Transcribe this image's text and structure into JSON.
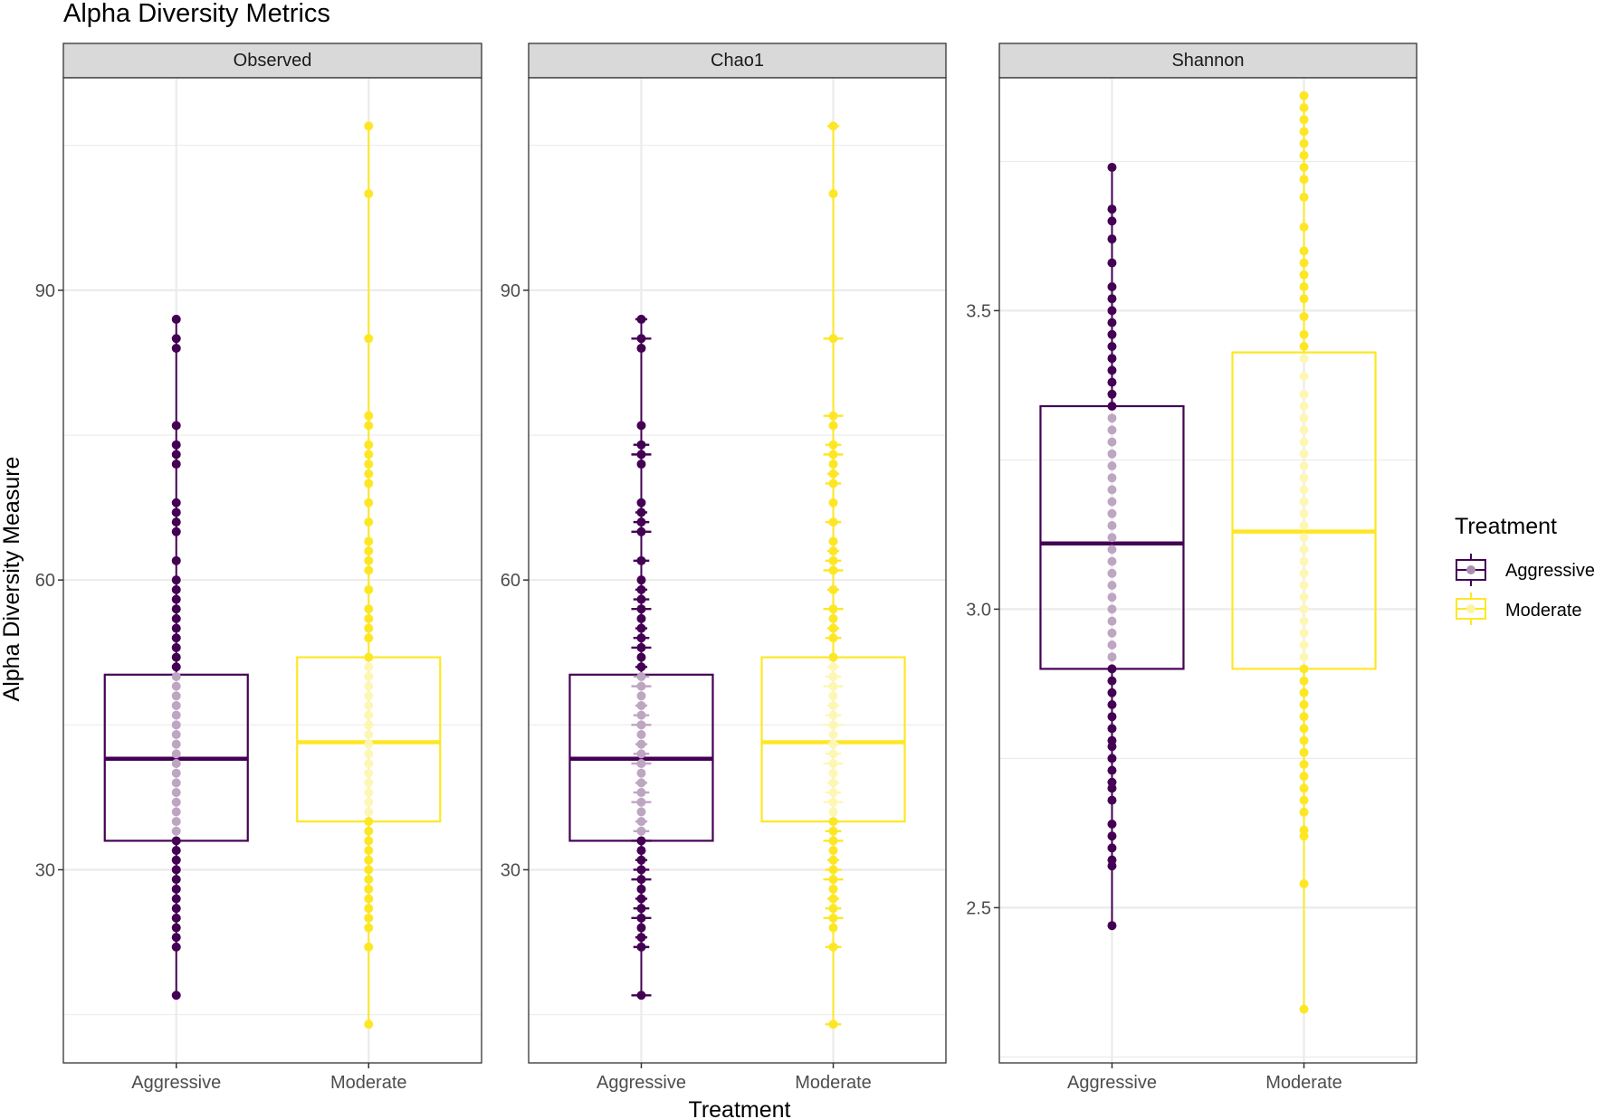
{
  "chart_data": {
    "type": "boxplot",
    "title": "Alpha Diversity Metrics",
    "xlabel": "Treatment",
    "ylabel": "Alpha Diversity Measure",
    "categories": [
      "Aggressive",
      "Moderate"
    ],
    "legend": {
      "title": "Treatment",
      "position": "right",
      "items": [
        {
          "label": "Aggressive",
          "color": "#440154"
        },
        {
          "label": "Moderate",
          "color": "#FDE725"
        }
      ]
    },
    "colors": {
      "Aggressive": "#440154",
      "Moderate": "#FDE725",
      "strip": "#d9d9d9",
      "grid": "#ebebeb",
      "panel_border": "#333333"
    },
    "panels": [
      {
        "name": "Observed",
        "ylim": [
          10,
          112
        ],
        "yticks": [
          30,
          60,
          90
        ],
        "error_bars": false,
        "boxes": [
          {
            "category": "Aggressive",
            "q1": 33,
            "median": 41.5,
            "q3": 50.2,
            "min": 17,
            "max": 87,
            "points": [
              17,
              22,
              23,
              24,
              25,
              26,
              27,
              28,
              29,
              30,
              31,
              32,
              33,
              34,
              35,
              36,
              37,
              38,
              39,
              40,
              41,
              42,
              43,
              44,
              45,
              46,
              47,
              48,
              49,
              50,
              51,
              52,
              53,
              54,
              55,
              56,
              57,
              58,
              59,
              60,
              62,
              65,
              66,
              67,
              68,
              72,
              73,
              74,
              76,
              84,
              85,
              87
            ]
          },
          {
            "category": "Moderate",
            "q1": 35,
            "median": 43.2,
            "q3": 52,
            "min": 14,
            "max": 107,
            "points": [
              14,
              22,
              24,
              25,
              26,
              27,
              28,
              29,
              30,
              31,
              32,
              33,
              34,
              35,
              36,
              37,
              38,
              39,
              40,
              41,
              42,
              43,
              44,
              45,
              46,
              47,
              48,
              49,
              50,
              51,
              52,
              54,
              55,
              56,
              57,
              59,
              61,
              62,
              63,
              64,
              66,
              68,
              70,
              71,
              72,
              73,
              74,
              76,
              77,
              85,
              100,
              107
            ]
          }
        ]
      },
      {
        "name": "Chao1",
        "ylim": [
          10,
          112
        ],
        "yticks": [
          30,
          60,
          90
        ],
        "error_bars": true,
        "boxes": [
          {
            "category": "Aggressive",
            "q1": 33,
            "median": 41.5,
            "q3": 50.2,
            "min": 17,
            "max": 87,
            "points": [
              17,
              22,
              23,
              24,
              25,
              26,
              27,
              28,
              29,
              30,
              31,
              32,
              33,
              34,
              35,
              36,
              37,
              38,
              39,
              40,
              41,
              42,
              43,
              44,
              45,
              46,
              47,
              48,
              49,
              50,
              51,
              52,
              53,
              54,
              55,
              56,
              57,
              58,
              59,
              60,
              62,
              65,
              66,
              67,
              68,
              72,
              73,
              74,
              76,
              84,
              85,
              87
            ]
          },
          {
            "category": "Moderate",
            "q1": 35,
            "median": 43.2,
            "q3": 52,
            "min": 14,
            "max": 107,
            "points": [
              14,
              22,
              24,
              25,
              26,
              27,
              28,
              29,
              30,
              31,
              32,
              33,
              34,
              35,
              36,
              37,
              38,
              39,
              40,
              41,
              42,
              43,
              44,
              45,
              46,
              47,
              48,
              49,
              50,
              51,
              52,
              54,
              55,
              56,
              57,
              59,
              61,
              62,
              63,
              64,
              66,
              68,
              70,
              71,
              72,
              73,
              74,
              76,
              77,
              85,
              100,
              107
            ]
          }
        ]
      },
      {
        "name": "Shannon",
        "ylim": [
          2.24,
          3.89
        ],
        "yticks": [
          2.5,
          3.0,
          3.5
        ],
        "error_bars": false,
        "boxes": [
          {
            "category": "Aggressive",
            "q1": 2.9,
            "median": 3.11,
            "q3": 3.34,
            "min": 2.47,
            "max": 3.74,
            "points": [
              2.47,
              2.57,
              2.58,
              2.6,
              2.62,
              2.64,
              2.68,
              2.7,
              2.71,
              2.73,
              2.75,
              2.77,
              2.78,
              2.8,
              2.82,
              2.84,
              2.86,
              2.88,
              2.9,
              2.92,
              2.94,
              2.96,
              2.98,
              3.0,
              3.02,
              3.04,
              3.06,
              3.08,
              3.1,
              3.12,
              3.14,
              3.16,
              3.18,
              3.2,
              3.22,
              3.24,
              3.26,
              3.28,
              3.3,
              3.32,
              3.34,
              3.36,
              3.38,
              3.4,
              3.42,
              3.44,
              3.46,
              3.48,
              3.5,
              3.52,
              3.54,
              3.58,
              3.62,
              3.65,
              3.67,
              3.74
            ]
          },
          {
            "category": "Moderate",
            "q1": 2.9,
            "median": 3.13,
            "q3": 3.43,
            "min": 2.33,
            "max": 3.86,
            "points": [
              2.33,
              2.54,
              2.62,
              2.63,
              2.66,
              2.68,
              2.7,
              2.72,
              2.74,
              2.76,
              2.78,
              2.8,
              2.82,
              2.84,
              2.86,
              2.88,
              2.9,
              2.92,
              2.94,
              2.96,
              2.98,
              3.0,
              3.02,
              3.04,
              3.06,
              3.08,
              3.1,
              3.12,
              3.14,
              3.16,
              3.18,
              3.2,
              3.22,
              3.24,
              3.26,
              3.28,
              3.3,
              3.32,
              3.34,
              3.36,
              3.39,
              3.42,
              3.44,
              3.46,
              3.49,
              3.52,
              3.54,
              3.56,
              3.58,
              3.6,
              3.64,
              3.69,
              3.72,
              3.74,
              3.76,
              3.78,
              3.8,
              3.82,
              3.84,
              3.86
            ]
          }
        ]
      }
    ]
  }
}
